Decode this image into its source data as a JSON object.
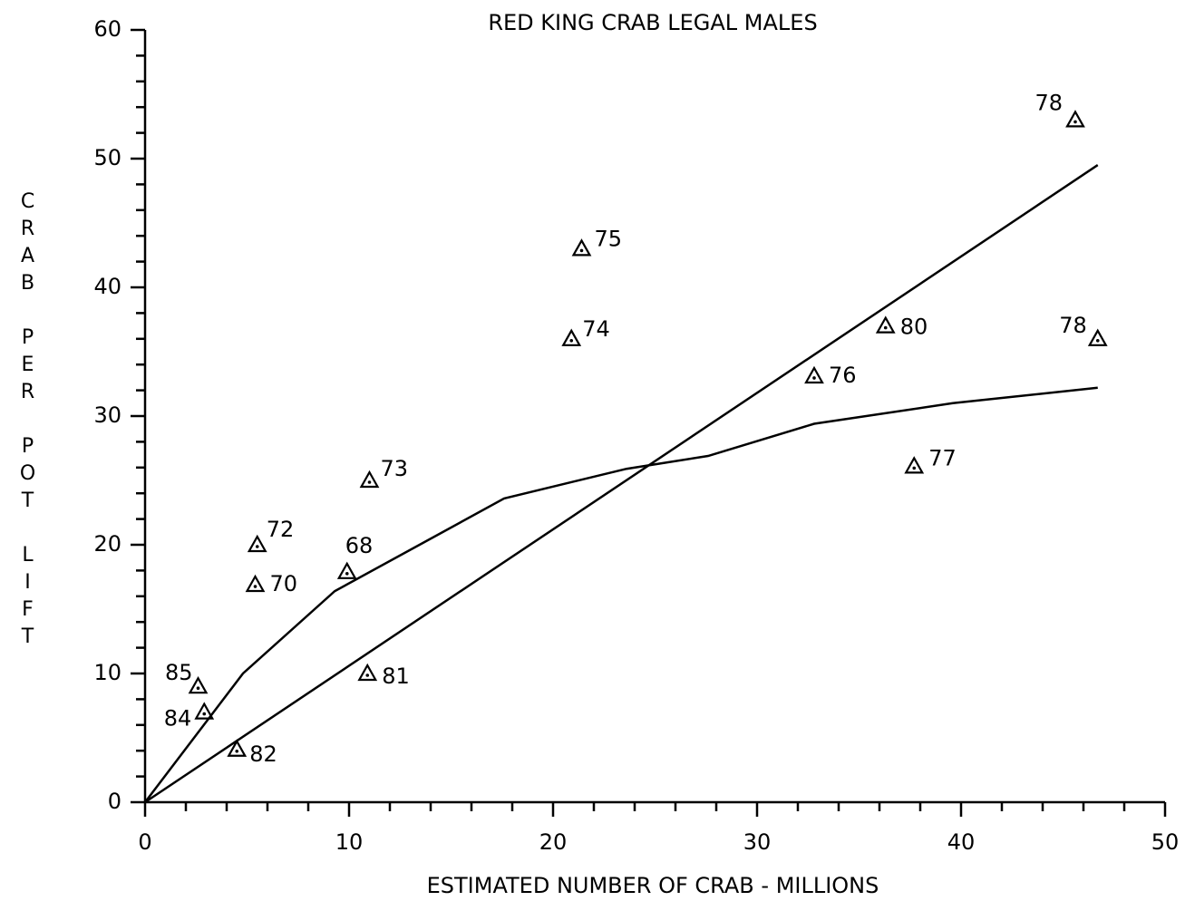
{
  "chart_data": {
    "type": "scatter",
    "title": "RED KING CRAB LEGAL MALES",
    "x_label": "ESTIMATED NUMBER OF CRAB - MILLIONS",
    "y_label": "CRAB PER POT LIFT",
    "xlim": [
      0,
      50
    ],
    "ylim": [
      0,
      60
    ],
    "xticks": [
      0,
      10,
      20,
      30,
      40,
      50
    ],
    "yticks": [
      0,
      10,
      20,
      30,
      40,
      50,
      60
    ],
    "xminor_ticks": [
      2,
      4,
      6,
      8,
      12,
      14,
      16,
      18,
      22,
      24,
      26,
      28,
      32,
      34,
      36,
      38,
      42,
      44,
      46,
      48
    ],
    "yminor_ticks": [
      2,
      4,
      6,
      8,
      12,
      14,
      16,
      18,
      22,
      24,
      26,
      28,
      32,
      34,
      36,
      38,
      42,
      44,
      46,
      48,
      52,
      54,
      56,
      58
    ],
    "color": "#000000",
    "points": {
      "x": [
        45.6,
        21.4,
        20.9,
        36.3,
        46.7,
        32.8,
        37.7,
        11.0,
        5.5,
        9.9,
        5.4,
        2.6,
        2.9,
        10.9,
        4.5
      ],
      "y": [
        53.0,
        43.0,
        36.0,
        37.0,
        36.0,
        33.1,
        26.1,
        25.0,
        20.0,
        17.9,
        16.9,
        9.0,
        7.0,
        10.0,
        4.1
      ],
      "labels": [
        "78",
        "75",
        "74",
        "80",
        "78",
        "76",
        "77",
        "73",
        "72",
        "68",
        "70",
        "85",
        "84",
        "81",
        "82"
      ]
    },
    "lines": [
      {
        "x": [
          0,
          46.7
        ],
        "y": [
          0,
          49.5
        ]
      },
      {
        "x": [
          0,
          4.8,
          9.3,
          13.8,
          17.6,
          23.6,
          27.6,
          32.8,
          39.6,
          46.7
        ],
        "y": [
          0,
          10.0,
          16.4,
          20.3,
          23.6,
          25.9,
          26.9,
          29.4,
          31.0,
          32.2
        ]
      }
    ]
  }
}
